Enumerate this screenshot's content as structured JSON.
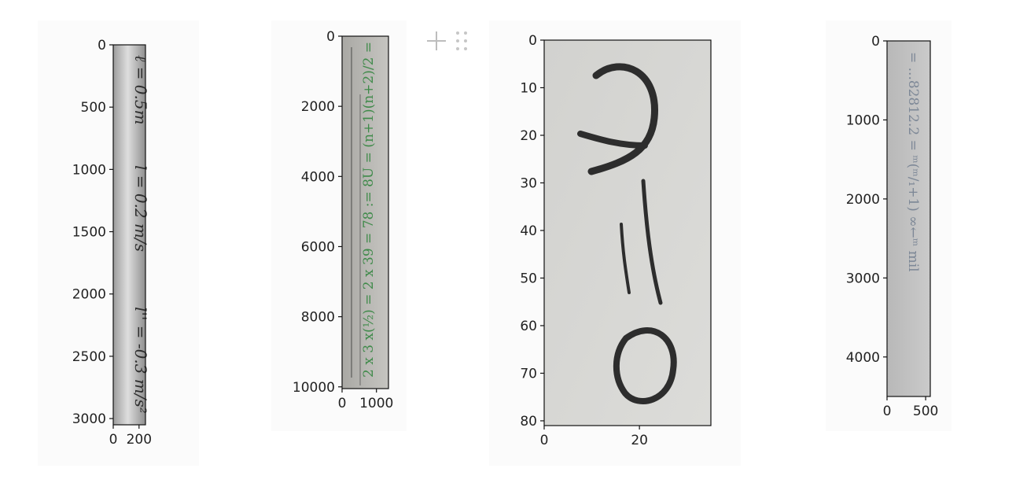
{
  "toolbar": {
    "add_icon": "plus-icon",
    "drag_icon": "drag-handle-icon"
  },
  "chart_data": [
    {
      "type": "image",
      "image_text": "ℓ = 0.5 m   l = 0.2 m/s   l'' = -0.3 m/s²",
      "image_height": 3050,
      "image_width": 250,
      "xlim": [
        0,
        250
      ],
      "ylim": [
        3050,
        0
      ],
      "xticks": [
        0,
        200
      ],
      "xtick_labels": [
        "0",
        "200"
      ],
      "yticks": [
        0,
        500,
        1000,
        1500,
        2000,
        2500,
        3000
      ],
      "ytick_labels": [
        "0",
        "500",
        "1000",
        "1500",
        "2000",
        "2500",
        "3000"
      ],
      "colors": {
        "paper": "#c9c9c9",
        "ink": "#2e2e2e"
      }
    },
    {
      "type": "image",
      "image_text": "2 x 3 x (1/2) = 2 x 39 = 78 := 8U = (n+1)(n+2)/2 =",
      "image_height": 10050,
      "image_width": 1350,
      "xlim": [
        0,
        1350
      ],
      "ylim": [
        10050,
        0
      ],
      "xticks": [
        0,
        1000
      ],
      "xtick_labels": [
        "0",
        "1000"
      ],
      "yticks": [
        0,
        2000,
        4000,
        6000,
        8000,
        10000
      ],
      "ytick_labels": [
        "0",
        "2000",
        "4000",
        "6000",
        "8000",
        "10000"
      ],
      "colors": {
        "paper": "#bdbcb8",
        "ink": "#3f8a4a"
      }
    },
    {
      "type": "image",
      "image_text": "Λ = 0",
      "image_height": 81,
      "image_width": 35,
      "xlim": [
        0,
        35
      ],
      "ylim": [
        81,
        0
      ],
      "xticks": [
        0,
        20
      ],
      "xtick_labels": [
        "0",
        "20"
      ],
      "yticks": [
        0,
        10,
        20,
        30,
        40,
        50,
        60,
        70,
        80
      ],
      "ytick_labels": [
        "0",
        "10",
        "20",
        "30",
        "40",
        "50",
        "60",
        "70",
        "80"
      ],
      "colors": {
        "paper": "#d6d6d3",
        "ink": "#2a2a2a"
      }
    },
    {
      "type": "image",
      "image_text": "lim m→∞ (1 + 1/m)^m = 2.71828... =",
      "image_height": 4500,
      "image_width": 560,
      "xlim": [
        0,
        560
      ],
      "ylim": [
        4500,
        0
      ],
      "xticks": [
        0,
        500
      ],
      "xtick_labels": [
        "0",
        "500"
      ],
      "yticks": [
        0,
        1000,
        2000,
        3000,
        4000
      ],
      "ytick_labels": [
        "0",
        "1000",
        "2000",
        "3000",
        "4000"
      ],
      "colors": {
        "paper": "#c3c3c3",
        "ink": "#7c8796"
      }
    }
  ]
}
